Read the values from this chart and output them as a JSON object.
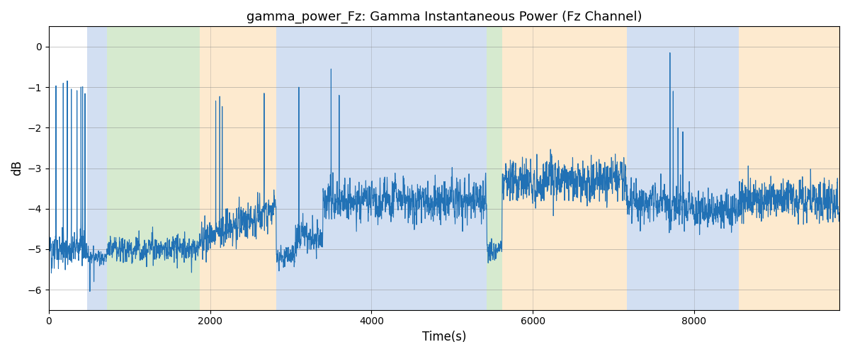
{
  "title": "gamma_power_Fz: Gamma Instantaneous Power (Fz Channel)",
  "xlabel": "Time(s)",
  "ylabel": "dB",
  "ylim": [
    -6.5,
    0.5
  ],
  "xlim": [
    0,
    9800
  ],
  "yticks": [
    0,
    -1,
    -2,
    -3,
    -4,
    -5,
    -6
  ],
  "background_color": "#ffffff",
  "line_color": "#2171b5",
  "line_width": 0.8,
  "bands": [
    {
      "xmin": 480,
      "xmax": 720,
      "color": "#aec6e8",
      "alpha": 0.55
    },
    {
      "xmin": 720,
      "xmax": 1870,
      "color": "#b5d9a8",
      "alpha": 0.55
    },
    {
      "xmin": 1870,
      "xmax": 2820,
      "color": "#fdd9a8",
      "alpha": 0.55
    },
    {
      "xmin": 2820,
      "xmax": 3050,
      "color": "#aec6e8",
      "alpha": 0.55
    },
    {
      "xmin": 3050,
      "xmax": 3400,
      "color": "#aec6e8",
      "alpha": 0.55
    },
    {
      "xmin": 3400,
      "xmax": 5430,
      "color": "#aec6e8",
      "alpha": 0.55
    },
    {
      "xmin": 5430,
      "xmax": 5620,
      "color": "#b5d9a8",
      "alpha": 0.55
    },
    {
      "xmin": 5620,
      "xmax": 7170,
      "color": "#fdd9a8",
      "alpha": 0.55
    },
    {
      "xmin": 7170,
      "xmax": 7680,
      "color": "#aec6e8",
      "alpha": 0.55
    },
    {
      "xmin": 7680,
      "xmax": 8550,
      "color": "#aec6e8",
      "alpha": 0.55
    },
    {
      "xmin": 8550,
      "xmax": 9800,
      "color": "#fdd9a8",
      "alpha": 0.55
    }
  ],
  "seed": 12345,
  "n_points": 9800
}
